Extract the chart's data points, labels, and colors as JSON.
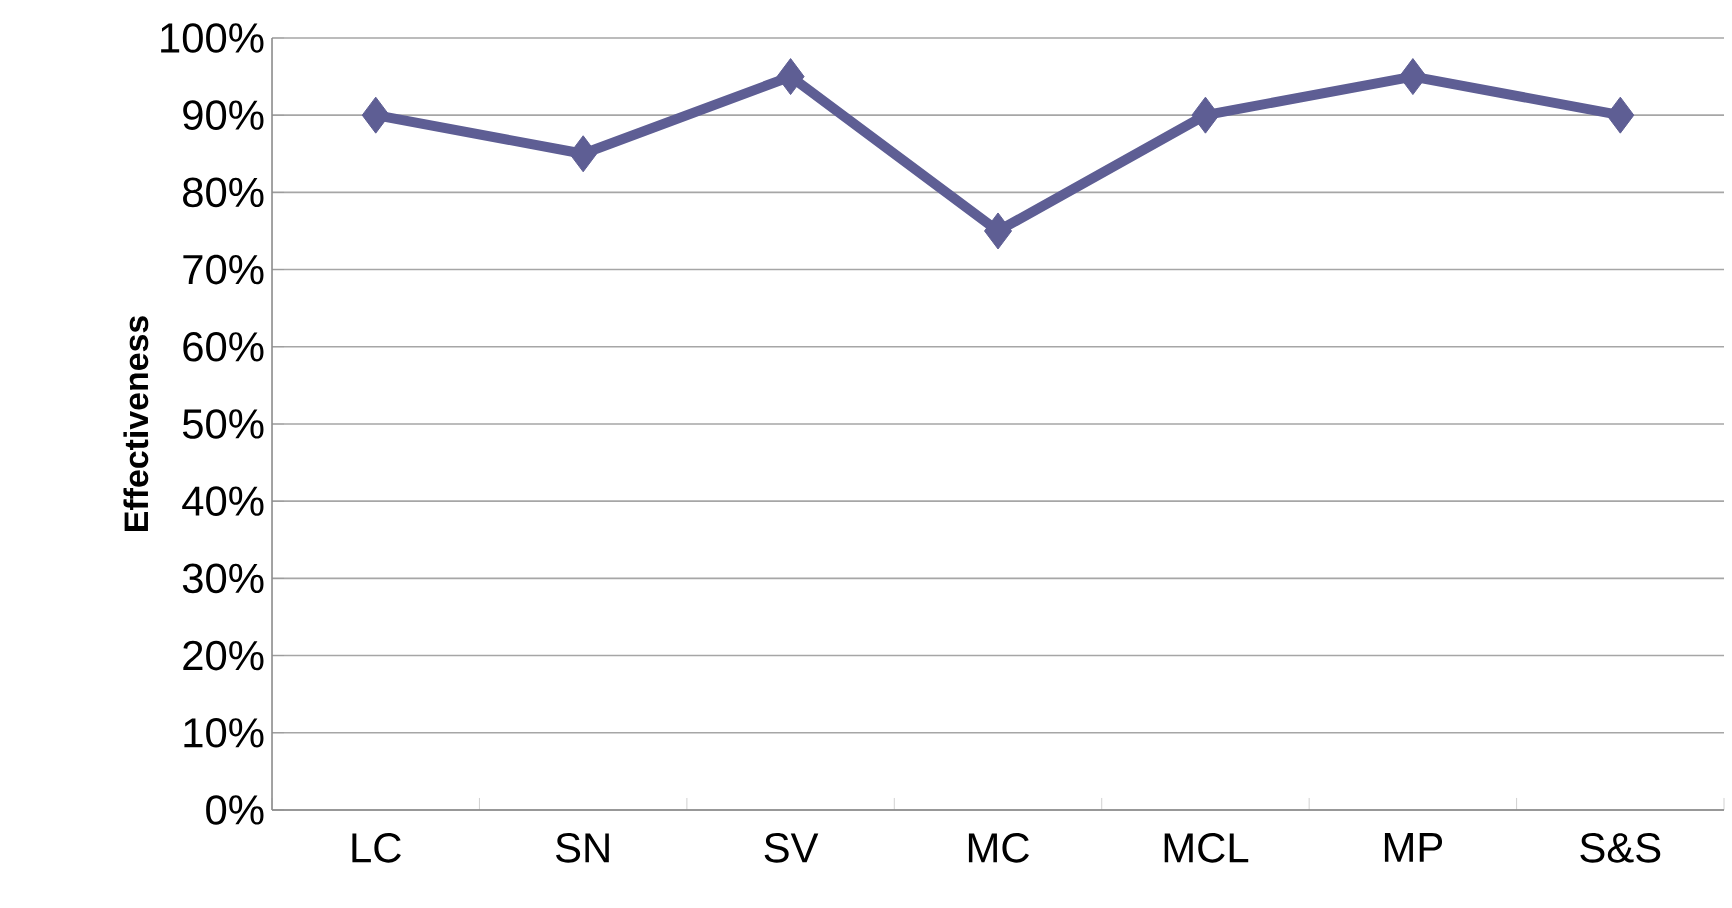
{
  "chart_data": {
    "type": "line",
    "ylabel": "Effectiveness",
    "categories": [
      "LC",
      "SN",
      "SV",
      "MC",
      "MCL",
      "MP",
      "S&S"
    ],
    "values": [
      90,
      85,
      95,
      75,
      90,
      95,
      90
    ],
    "color": "#5e5e94",
    "marker": "diamond",
    "line_style": "solid",
    "grid": "y",
    "ylim": [
      0,
      100
    ],
    "yticks": [
      {
        "value": 0,
        "label": "0%"
      },
      {
        "value": 10,
        "label": "10%"
      },
      {
        "value": 20,
        "label": "20%"
      },
      {
        "value": 30,
        "label": "30%"
      },
      {
        "value": 40,
        "label": "40%"
      },
      {
        "value": 50,
        "label": "50%"
      },
      {
        "value": 60,
        "label": "60%"
      },
      {
        "value": 70,
        "label": "70%"
      },
      {
        "value": 80,
        "label": "80%"
      },
      {
        "value": 90,
        "label": "90%"
      },
      {
        "value": 100,
        "label": "100%"
      }
    ]
  }
}
